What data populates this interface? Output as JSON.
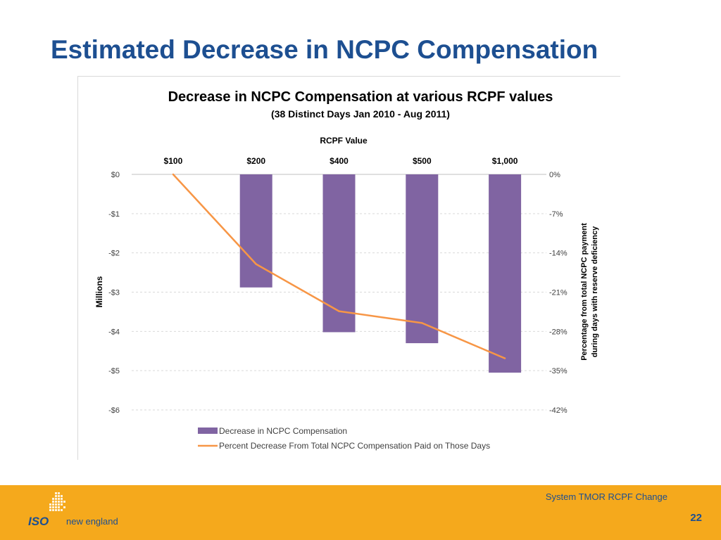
{
  "slide": {
    "title": "Estimated Decrease in NCPC Compensation",
    "footer_caption": "System TMOR RCPF Change",
    "page_number": "22",
    "logo_iso": "ISO",
    "logo_name": "new england"
  },
  "colors": {
    "title": "#1d4f91",
    "bar": "#8064a2",
    "line": "#f79646",
    "footer": "#f5a91c"
  },
  "chart_data": {
    "type": "bar",
    "title": "Decrease in NCPC Compensation at various RCPF values",
    "subtitle": "(38 Distinct Days Jan 2010 - Aug 2011)",
    "xlabel": "RCPF Value",
    "ylabel": "Millions",
    "y2label_line1": "Percentage from total NCPC payment",
    "y2label_line2": "during days with reserve deficiency",
    "categories": [
      "$100",
      "$200",
      "$400",
      "$500",
      "$1,000"
    ],
    "x_axis_position": "top",
    "ylim": [
      -6,
      0
    ],
    "y_ticks": [
      0,
      -1,
      -2,
      -3,
      -4,
      -5,
      -6
    ],
    "y_tick_labels": [
      "$0",
      "-$1",
      "-$2",
      "-$3",
      "-$4",
      "-$5",
      "-$6"
    ],
    "y2lim": [
      -42,
      0
    ],
    "y2_ticks": [
      0,
      -7,
      -14,
      -21,
      -28,
      -35,
      -42
    ],
    "y2_tick_labels": [
      "0%",
      "-7%",
      "-14%",
      "-21%",
      "-28%",
      "-35%",
      "-42%"
    ],
    "grid": true,
    "legend_position": "bottom",
    "series": [
      {
        "name": "Decrease in NCPC Compensation",
        "type": "bar",
        "axis": "left",
        "color": "#8064a2",
        "values": [
          0,
          -2.88,
          -4.02,
          -4.3,
          -5.05
        ]
      },
      {
        "name": "Percent Decrease From Total NCPC Compensation Paid on Those Days",
        "type": "line",
        "axis": "right",
        "color": "#f79646",
        "values": [
          0,
          -16.0,
          -24.4,
          -26.5,
          -32.8
        ]
      }
    ]
  }
}
